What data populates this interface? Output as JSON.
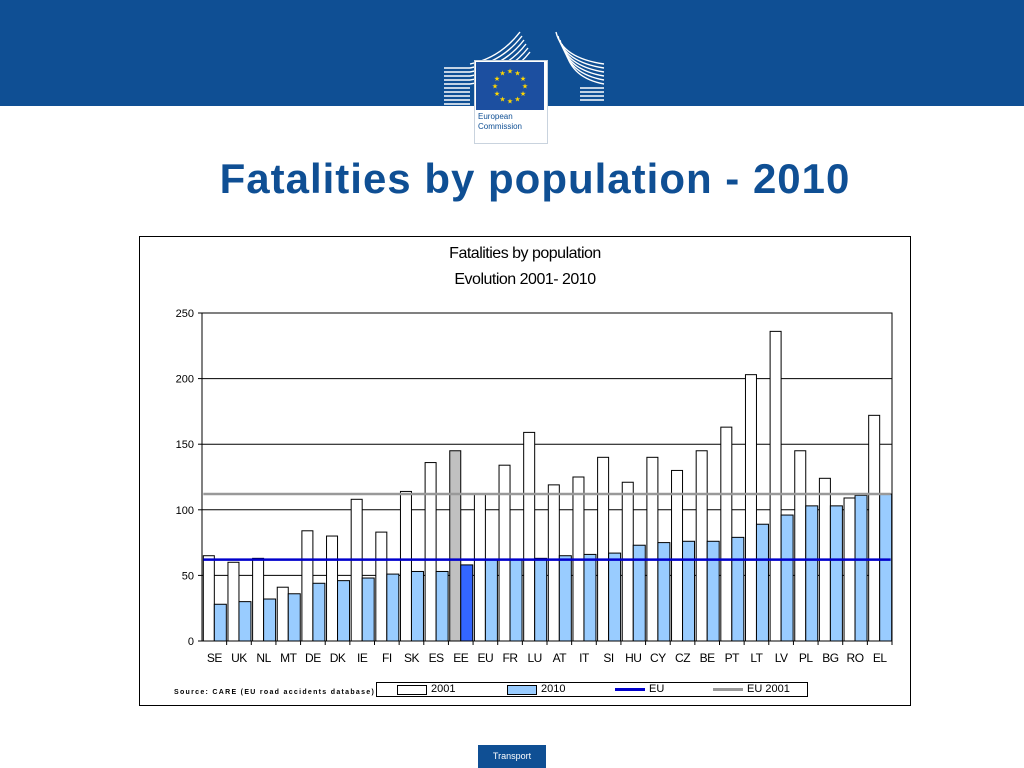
{
  "header": {
    "logo_line1": "European",
    "logo_line2": "Commission",
    "band_color": "#0f4f94"
  },
  "slide": {
    "title": "Fatalities by population - 2010",
    "footer_label": "Transport"
  },
  "chart_data": {
    "type": "bar",
    "title": "Fatalities by population",
    "subtitle": "Evolution 2001- 2010",
    "source": "Source: CARE (EU road accidents database)",
    "categories": [
      "SE",
      "UK",
      "NL",
      "MT",
      "DE",
      "DK",
      "IE",
      "FI",
      "SK",
      "ES",
      "EE",
      "EU",
      "FR",
      "LU",
      "AT",
      "IT",
      "SI",
      "HU",
      "CY",
      "CZ",
      "BE",
      "PT",
      "LT",
      "LV",
      "PL",
      "BG",
      "RO",
      "EL"
    ],
    "series": [
      {
        "name": "2001",
        "color": "#ffffff",
        "highlight_color": "#c0c0c0",
        "highlight_category": "EE",
        "values": [
          65,
          60,
          63,
          41,
          84,
          80,
          108,
          83,
          114,
          136,
          145,
          112,
          134,
          159,
          119,
          125,
          140,
          121,
          140,
          130,
          145,
          163,
          203,
          236,
          145,
          124,
          109,
          172
        ]
      },
      {
        "name": "2010",
        "color": "#99ccff",
        "highlight_color": "#3366ff",
        "highlight_category": "EE",
        "values": [
          28,
          30,
          32,
          36,
          44,
          46,
          48,
          51,
          53,
          53,
          58,
          62,
          62,
          63,
          65,
          66,
          67,
          73,
          75,
          76,
          76,
          79,
          89,
          96,
          103,
          103,
          111,
          112
        ]
      }
    ],
    "reference_lines": [
      {
        "name": "EU",
        "value": 62,
        "color": "#0000cc"
      },
      {
        "name": "EU 2001",
        "value": 112,
        "color": "#999999"
      }
    ],
    "ylim": [
      0,
      250
    ],
    "yticks": [
      0,
      50,
      100,
      150,
      200,
      250
    ],
    "grid": true,
    "legend_position": "bottom"
  }
}
